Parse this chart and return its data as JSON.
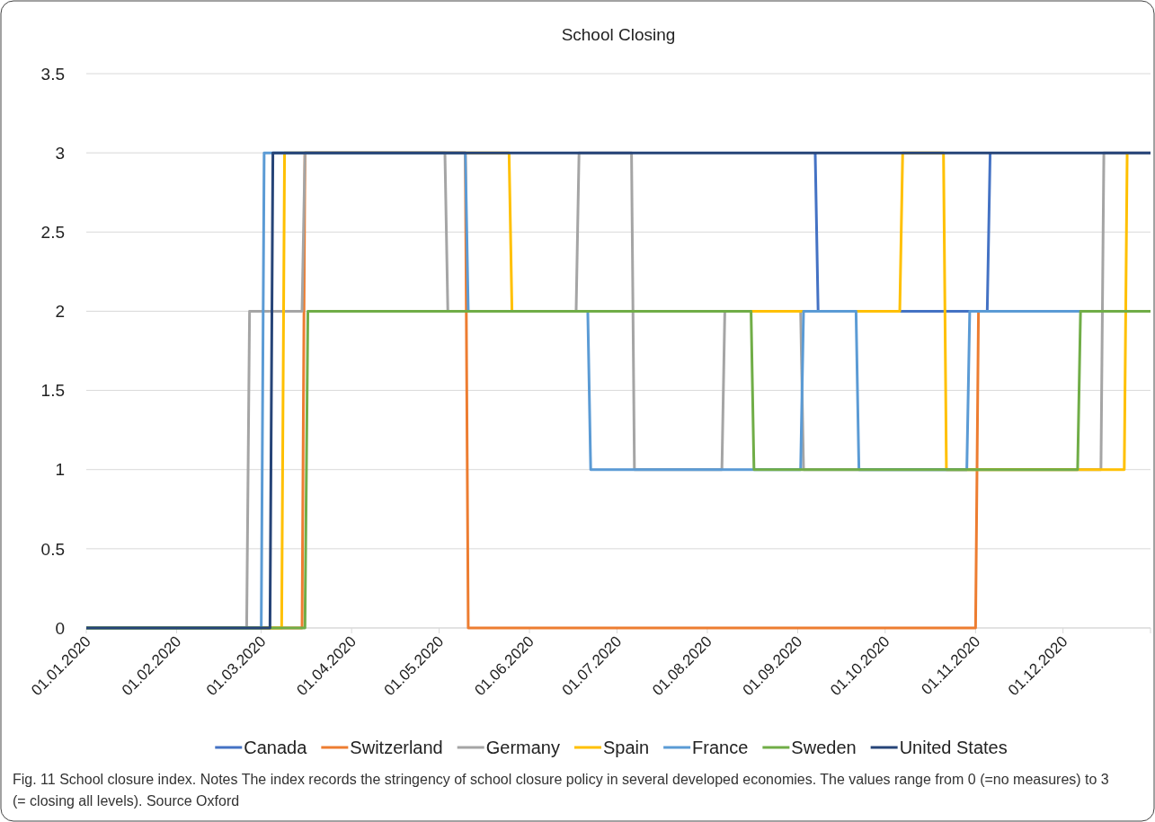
{
  "chart_data": {
    "type": "line",
    "title": "School Closing",
    "xlim": [
      "2020-01-01",
      "2020-12-31"
    ],
    "xticks": [
      {
        "value": "2020-01-01",
        "label": "01.01.2020"
      },
      {
        "value": "2020-02-01",
        "label": "01.02.2020"
      },
      {
        "value": "2020-03-01",
        "label": "01.03.2020"
      },
      {
        "value": "2020-04-01",
        "label": "01.04.2020"
      },
      {
        "value": "2020-05-01",
        "label": "01.05.2020"
      },
      {
        "value": "2020-06-01",
        "label": "01.06.2020"
      },
      {
        "value": "2020-07-01",
        "label": "01.07.2020"
      },
      {
        "value": "2020-08-01",
        "label": "01.08.2020"
      },
      {
        "value": "2020-09-01",
        "label": "01.09.2020"
      },
      {
        "value": "2020-10-01",
        "label": "01.10.2020"
      },
      {
        "value": "2020-11-01",
        "label": "01.11.2020"
      },
      {
        "value": "2020-12-01",
        "label": "01.12.2020"
      }
    ],
    "ylim": [
      0,
      3.5
    ],
    "yticks": [
      0,
      0.5,
      1,
      1.5,
      2,
      2.5,
      3,
      3.5
    ],
    "grid": "y",
    "legend": "bottom",
    "marker": "none",
    "line_style": "solid",
    "series": [
      {
        "name": "Canada",
        "color": "#4472c4",
        "x": [
          "2020-09-07",
          "2020-09-08",
          "2020-11-05",
          "2020-11-06"
        ],
        "values": [
          3,
          2,
          2,
          3
        ]
      },
      {
        "name": "Switzerland",
        "color": "#ed7d31",
        "x": [
          "2020-01-01",
          "2020-03-15",
          "2020-03-16",
          "2020-05-10",
          "2020-05-11",
          "2020-11-01",
          "2020-11-02"
        ],
        "values": [
          0,
          0,
          3,
          3,
          0,
          0,
          2
        ]
      },
      {
        "name": "Germany",
        "color": "#a5a5a5",
        "x": [
          "2020-01-01",
          "2020-02-25",
          "2020-02-26",
          "2020-03-15",
          "2020-03-16",
          "2020-05-03",
          "2020-05-04",
          "2020-06-17",
          "2020-06-18",
          "2020-07-06",
          "2020-07-07",
          "2020-08-06",
          "2020-08-07",
          "2020-09-02",
          "2020-09-03",
          "2020-12-14",
          "2020-12-15",
          "2020-12-31"
        ],
        "values": [
          0,
          0,
          2,
          2,
          3,
          3,
          2,
          2,
          3,
          3,
          1,
          1,
          2,
          2,
          1,
          1,
          3,
          3
        ]
      },
      {
        "name": "Spain",
        "color": "#ffc000",
        "x": [
          "2020-01-01",
          "2020-03-08",
          "2020-03-09",
          "2020-05-25",
          "2020-05-26",
          "2020-10-06",
          "2020-10-07",
          "2020-10-21",
          "2020-10-22",
          "2020-12-22",
          "2020-12-23"
        ],
        "values": [
          0,
          0,
          3,
          3,
          2,
          2,
          3,
          3,
          1,
          1,
          3
        ]
      },
      {
        "name": "France",
        "color": "#5b9bd5",
        "x": [
          "2020-01-01",
          "2020-03-01",
          "2020-03-02",
          "2020-05-10",
          "2020-05-11",
          "2020-06-21",
          "2020-06-22",
          "2020-09-02",
          "2020-09-03",
          "2020-09-21",
          "2020-09-22",
          "2020-10-29",
          "2020-10-30",
          "2020-12-31"
        ],
        "values": [
          0,
          0,
          3,
          3,
          2,
          2,
          1,
          1,
          2,
          2,
          1,
          1,
          2,
          2
        ]
      },
      {
        "name": "Sweden",
        "color": "#70ad47",
        "x": [
          "2020-01-01",
          "2020-03-16",
          "2020-03-17",
          "2020-08-16",
          "2020-08-17",
          "2020-12-06",
          "2020-12-07",
          "2020-12-31"
        ],
        "values": [
          0,
          0,
          2,
          2,
          1,
          1,
          2,
          2
        ]
      },
      {
        "name": "United States",
        "color": "#264478",
        "x": [
          "2020-01-01",
          "2020-03-04",
          "2020-03-05",
          "2020-12-31"
        ],
        "values": [
          0,
          0,
          3,
          3
        ]
      }
    ],
    "annotations": [
      "Fig. 11  School closure index. Notes The index records the stringency of school closure policy in several developed economies. The values range from 0 (=no measures) to 3 (= closing all levels). Source Oxford"
    ]
  }
}
